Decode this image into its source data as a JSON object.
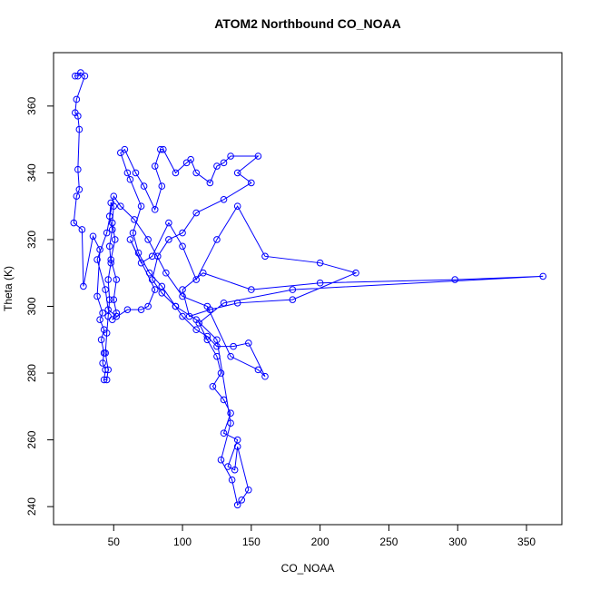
{
  "chart_data": {
    "type": "line",
    "title": "ATOM2 Northbound CO_NOAA",
    "xlabel": "CO_NOAA",
    "ylabel": "Theta (K)",
    "x": [
      22,
      24,
      26,
      29,
      23,
      22,
      24,
      25,
      24,
      25,
      23,
      21,
      27,
      28,
      35,
      40,
      38,
      42,
      40,
      43,
      41,
      43,
      42,
      44,
      43,
      45,
      46,
      44,
      45,
      46,
      47,
      46,
      48,
      47,
      49,
      47,
      48,
      50,
      49,
      51,
      48,
      52,
      50,
      52,
      49,
      60,
      70,
      75,
      80,
      62,
      70,
      78,
      90,
      100,
      110,
      125,
      140,
      160,
      200,
      226,
      180,
      140,
      120,
      105,
      100,
      115,
      150,
      200,
      298,
      362,
      180,
      130,
      112,
      118,
      125,
      128,
      122,
      130,
      135,
      130,
      140,
      133,
      138,
      140,
      148,
      143,
      140,
      136,
      128,
      135,
      125,
      110,
      95,
      85,
      76,
      68,
      64,
      70,
      62,
      60,
      55,
      58,
      66,
      72,
      80,
      85,
      80,
      84,
      86,
      95,
      103,
      106,
      110,
      120,
      125,
      130,
      135,
      155,
      140,
      150,
      130,
      110,
      100,
      90,
      82,
      78,
      85,
      95,
      100,
      110,
      118,
      125,
      137,
      148,
      160,
      155,
      135,
      118,
      100,
      88,
      75,
      65,
      55,
      50,
      45,
      38,
      44,
      46,
      52
    ],
    "series": [
      {
        "color": "#0000ff",
        "values": [
          369,
          369,
          370,
          369,
          362,
          358,
          357,
          353,
          341,
          335,
          333,
          325,
          323,
          306,
          321,
          317,
          303,
          298,
          296,
          293,
          290,
          286,
          283,
          281,
          278,
          278,
          281,
          286,
          292,
          297,
          302,
          308,
          313,
          318,
          323,
          327,
          331,
          330,
          325,
          320,
          314,
          308,
          302,
          298,
          296,
          299,
          299,
          300,
          305,
          320,
          313,
          315,
          325,
          318,
          308,
          320,
          330,
          315,
          313,
          310,
          302,
          301,
          299,
          297,
          305,
          310,
          305,
          307,
          308,
          309,
          305,
          301,
          295,
          290,
          285,
          280,
          276,
          272,
          268,
          262,
          260,
          252,
          251,
          258,
          245,
          242,
          240.5,
          248,
          254,
          265,
          290,
          296,
          300,
          306,
          310,
          316,
          322,
          330,
          338,
          340,
          346,
          347,
          340,
          336,
          329,
          336,
          342,
          347,
          347,
          340,
          343,
          344,
          340,
          337,
          342,
          343,
          345,
          345,
          340,
          337,
          332,
          328,
          322,
          320,
          315,
          308,
          304,
          300,
          297,
          293,
          291,
          288,
          288,
          289,
          279,
          281,
          285,
          300,
          303,
          310,
          320,
          326,
          330,
          333,
          322,
          314,
          305,
          299,
          297
        ]
      }
    ],
    "xlim": [
      6.3,
      375.7
    ],
    "ylim": [
      234.6,
      376
    ],
    "xticks": [
      50,
      100,
      150,
      200,
      250,
      300,
      350
    ],
    "yticks": [
      240,
      260,
      280,
      300,
      320,
      340,
      360
    ]
  }
}
